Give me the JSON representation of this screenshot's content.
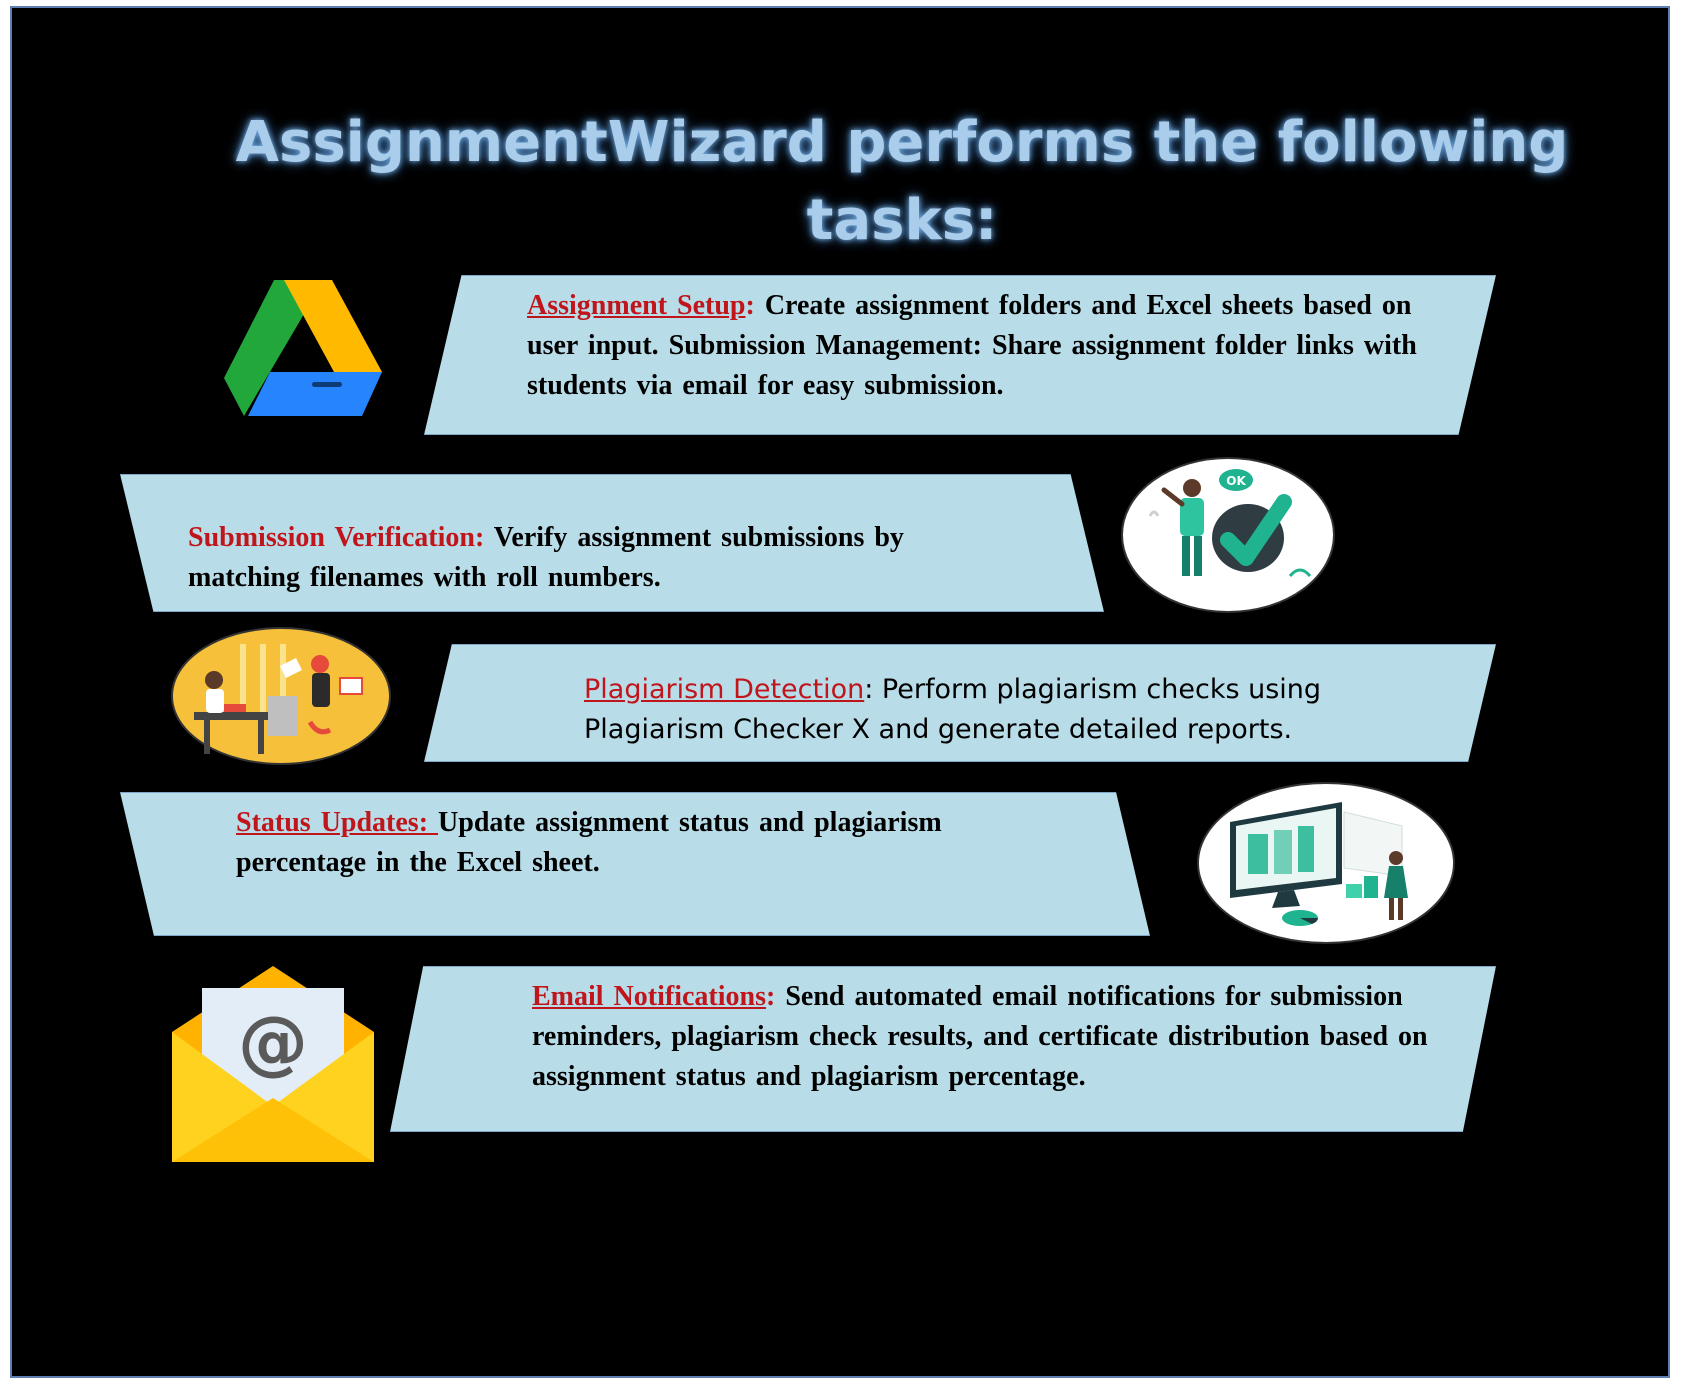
{
  "title": "AssignmentWizard performs the following tasks:",
  "tasks": [
    {
      "key": "Assignment Setup",
      "sep": ":",
      "desc": " Create assignment folders and Excel sheets based on user input. Submission Management: Share assignment folder links with students via email for easy submission."
    },
    {
      "key": "Submission Verification:",
      "sep": "",
      "desc": " Verify assignment submissions by matching filenames with roll numbers."
    },
    {
      "key": "Plagiarism Detection",
      "sep": ":",
      "desc": " Perform plagiarism checks using Plagiarism Checker X and generate detailed reports."
    },
    {
      "key": "Status Updates: ",
      "sep": "",
      "desc": "Update assignment status and plagiarism percentage in the Excel sheet."
    },
    {
      "key": "Email Notifications",
      "sep": ":",
      "desc": " Send automated email notifications for submission reminders, plagiarism check results, and certificate distribution based on assignment status and plagiarism percentage."
    }
  ],
  "icons": {
    "drive": "google-drive-icon",
    "ok": "ok-checkmark-illustration",
    "team": "office-workers-illustration",
    "dashboard": "dashboard-analytics-illustration",
    "email": "email-envelope-icon",
    "ok_text": "OK"
  },
  "colors": {
    "background": "#000000",
    "band": "#b8dde9",
    "title": "#a9cdea",
    "keyword": "#c0151a"
  }
}
